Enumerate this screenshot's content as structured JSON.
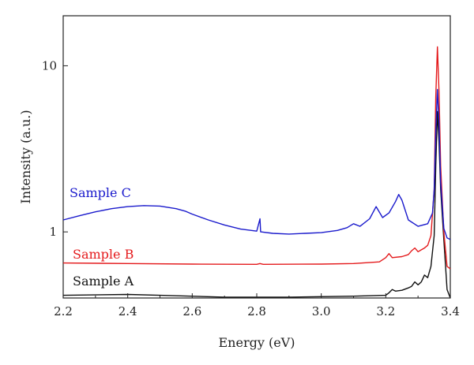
{
  "chart_data": {
    "type": "line",
    "title": "",
    "xlabel": "Energy (eV)",
    "ylabel": "Intensity (a.u.)",
    "xlim": [
      2.2,
      3.4
    ],
    "ylim": [
      0.4,
      20
    ],
    "yscale": "log",
    "grid": false,
    "x_ticks": [
      2.2,
      2.4,
      2.6,
      2.8,
      3.0,
      3.2,
      3.4
    ],
    "x_tick_labels": [
      "2.2",
      "2.4",
      "2.6",
      "2.8",
      "3.0",
      "3.2",
      "3.4"
    ],
    "y_ticks": [
      1,
      10
    ],
    "y_tick_labels": [
      "1",
      "10"
    ],
    "series": [
      {
        "name": "Sample A",
        "color": "#111111",
        "points": [
          [
            2.2,
            0.415
          ],
          [
            2.4,
            0.42
          ],
          [
            2.5,
            0.415
          ],
          [
            2.7,
            0.405
          ],
          [
            2.9,
            0.405
          ],
          [
            3.1,
            0.41
          ],
          [
            3.2,
            0.415
          ],
          [
            3.21,
            0.43
          ],
          [
            3.22,
            0.45
          ],
          [
            3.23,
            0.44
          ],
          [
            3.25,
            0.445
          ],
          [
            3.27,
            0.46
          ],
          [
            3.28,
            0.47
          ],
          [
            3.29,
            0.5
          ],
          [
            3.3,
            0.48
          ],
          [
            3.31,
            0.5
          ],
          [
            3.32,
            0.55
          ],
          [
            3.33,
            0.53
          ],
          [
            3.34,
            0.62
          ],
          [
            3.35,
            0.95
          ],
          [
            3.355,
            2.5
          ],
          [
            3.36,
            5.3
          ],
          [
            3.365,
            3.5
          ],
          [
            3.37,
            1.8
          ],
          [
            3.38,
            0.9
          ],
          [
            3.39,
            0.45
          ],
          [
            3.4,
            0.4
          ]
        ]
      },
      {
        "name": "Sample B",
        "color": "#e41a1c",
        "points": [
          [
            2.2,
            0.65
          ],
          [
            2.4,
            0.645
          ],
          [
            2.6,
            0.64
          ],
          [
            2.8,
            0.638
          ],
          [
            2.81,
            0.645
          ],
          [
            2.82,
            0.638
          ],
          [
            3.0,
            0.64
          ],
          [
            3.1,
            0.645
          ],
          [
            3.18,
            0.66
          ],
          [
            3.2,
            0.7
          ],
          [
            3.21,
            0.74
          ],
          [
            3.22,
            0.7
          ],
          [
            3.25,
            0.71
          ],
          [
            3.27,
            0.73
          ],
          [
            3.28,
            0.77
          ],
          [
            3.29,
            0.8
          ],
          [
            3.3,
            0.76
          ],
          [
            3.31,
            0.78
          ],
          [
            3.32,
            0.8
          ],
          [
            3.33,
            0.83
          ],
          [
            3.34,
            0.95
          ],
          [
            3.35,
            1.8
          ],
          [
            3.355,
            6.5
          ],
          [
            3.36,
            13.0
          ],
          [
            3.365,
            7.0
          ],
          [
            3.37,
            2.5
          ],
          [
            3.38,
            1.0
          ],
          [
            3.39,
            0.62
          ],
          [
            3.4,
            0.6
          ]
        ]
      },
      {
        "name": "Sample C",
        "color": "#1a1acc",
        "points": [
          [
            2.2,
            1.18
          ],
          [
            2.25,
            1.25
          ],
          [
            2.3,
            1.32
          ],
          [
            2.35,
            1.38
          ],
          [
            2.4,
            1.42
          ],
          [
            2.45,
            1.44
          ],
          [
            2.5,
            1.43
          ],
          [
            2.55,
            1.38
          ],
          [
            2.58,
            1.33
          ],
          [
            2.6,
            1.28
          ],
          [
            2.65,
            1.18
          ],
          [
            2.7,
            1.1
          ],
          [
            2.75,
            1.04
          ],
          [
            2.8,
            1.01
          ],
          [
            2.81,
            1.2
          ],
          [
            2.812,
            1.0
          ],
          [
            2.85,
            0.98
          ],
          [
            2.9,
            0.97
          ],
          [
            2.95,
            0.98
          ],
          [
            3.0,
            0.99
          ],
          [
            3.05,
            1.02
          ],
          [
            3.08,
            1.06
          ],
          [
            3.1,
            1.12
          ],
          [
            3.12,
            1.08
          ],
          [
            3.15,
            1.2
          ],
          [
            3.17,
            1.42
          ],
          [
            3.19,
            1.22
          ],
          [
            3.21,
            1.3
          ],
          [
            3.23,
            1.52
          ],
          [
            3.24,
            1.68
          ],
          [
            3.25,
            1.55
          ],
          [
            3.27,
            1.18
          ],
          [
            3.3,
            1.08
          ],
          [
            3.33,
            1.12
          ],
          [
            3.345,
            1.3
          ],
          [
            3.35,
            1.8
          ],
          [
            3.355,
            4.0
          ],
          [
            3.36,
            7.2
          ],
          [
            3.365,
            4.5
          ],
          [
            3.37,
            2.0
          ],
          [
            3.38,
            1.05
          ],
          [
            3.39,
            0.92
          ],
          [
            3.4,
            0.9
          ]
        ]
      }
    ]
  }
}
